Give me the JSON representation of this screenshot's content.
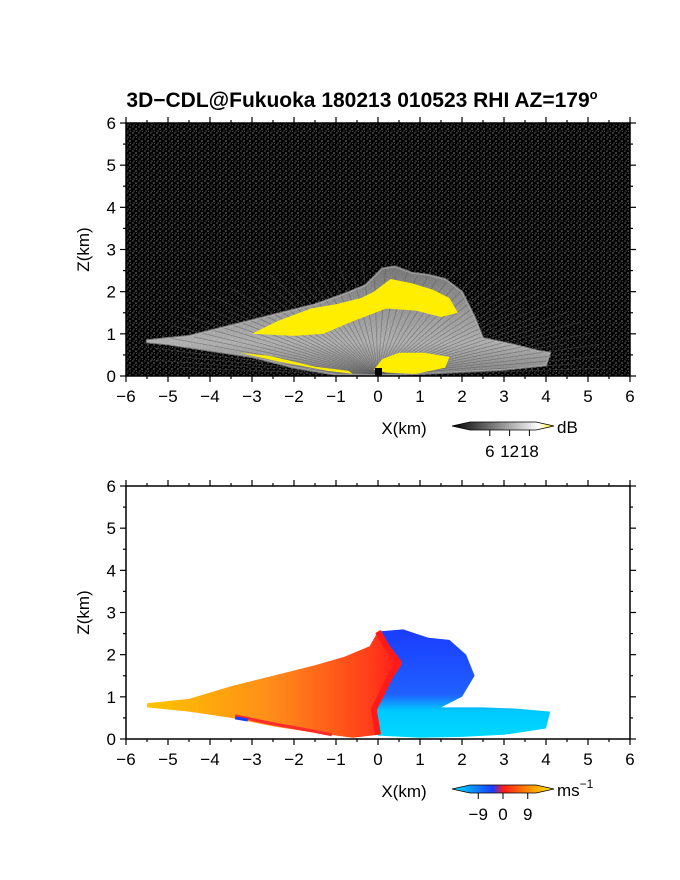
{
  "title": "3D−CDL@Fukuoka 180213 010523 RHI AZ=179",
  "title_degree": "o",
  "chart_data": [
    {
      "type": "heatmap",
      "quantity": "reflectivity",
      "xlabel": "X(km)",
      "ylabel": "Z(km)",
      "xlim": [
        -6,
        6
      ],
      "ylim": [
        0,
        6
      ],
      "x_ticks": [
        -6,
        -5,
        -4,
        -3,
        -2,
        -1,
        0,
        1,
        2,
        3,
        4,
        5,
        6
      ],
      "y_ticks": [
        0,
        1,
        2,
        3,
        4,
        5,
        6
      ],
      "colorbar": {
        "unit": "dB",
        "ticks": [
          6,
          12,
          18
        ],
        "range": [
          0,
          20
        ],
        "colors": [
          "#000000",
          "#ffffff",
          "#ffee00"
        ]
      },
      "echo_envelope": [
        [
          -5.5,
          0.85
        ],
        [
          -4.5,
          0.95
        ],
        [
          -3.5,
          1.2
        ],
        [
          -2.5,
          1.45
        ],
        [
          -1.5,
          1.7
        ],
        [
          -0.8,
          1.95
        ],
        [
          -0.3,
          2.15
        ],
        [
          0.1,
          2.55
        ],
        [
          0.4,
          2.6
        ],
        [
          0.8,
          2.45
        ],
        [
          1.2,
          2.4
        ],
        [
          1.6,
          2.3
        ],
        [
          2.0,
          2.0
        ],
        [
          2.3,
          1.4
        ],
        [
          2.5,
          0.9
        ],
        [
          3.2,
          0.75
        ],
        [
          3.8,
          0.6
        ],
        [
          4.1,
          0.55
        ],
        [
          4.0,
          0.25
        ],
        [
          3.0,
          0.15
        ],
        [
          2.0,
          0.1
        ],
        [
          1.0,
          0.05
        ],
        [
          0.0,
          0.02
        ],
        [
          -1.0,
          0.03
        ],
        [
          -2.0,
          0.2
        ],
        [
          -3.0,
          0.45
        ],
        [
          -4.0,
          0.6
        ],
        [
          -5.0,
          0.75
        ],
        [
          -5.5,
          0.8
        ]
      ],
      "strong_echo_regions": [
        [
          [
            -3.0,
            1.0
          ],
          [
            -2.4,
            1.3
          ],
          [
            -1.6,
            1.6
          ],
          [
            -1.0,
            1.7
          ],
          [
            -0.4,
            1.85
          ],
          [
            -0.1,
            2.0
          ],
          [
            0.3,
            2.3
          ],
          [
            0.8,
            2.2
          ],
          [
            1.3,
            2.05
          ],
          [
            1.7,
            1.85
          ],
          [
            1.9,
            1.5
          ],
          [
            1.5,
            1.4
          ],
          [
            0.9,
            1.55
          ],
          [
            0.2,
            1.6
          ],
          [
            -0.6,
            1.3
          ],
          [
            -1.3,
            1.0
          ],
          [
            -2.0,
            0.95
          ]
        ],
        [
          [
            -0.1,
            0.15
          ],
          [
            0.1,
            0.4
          ],
          [
            0.5,
            0.55
          ],
          [
            1.1,
            0.55
          ],
          [
            1.7,
            0.45
          ],
          [
            1.6,
            0.2
          ],
          [
            0.9,
            0.05
          ],
          [
            0.2,
            0.08
          ]
        ],
        [
          [
            -3.3,
            0.55
          ],
          [
            -2.4,
            0.35
          ],
          [
            -1.2,
            0.12
          ],
          [
            -0.6,
            0.05
          ],
          [
            -0.7,
            0.12
          ],
          [
            -1.5,
            0.22
          ],
          [
            -2.6,
            0.48
          ]
        ]
      ]
    },
    {
      "type": "heatmap",
      "quantity": "doppler_velocity",
      "xlabel": "X(km)",
      "ylabel": "Z(km)",
      "xlim": [
        -6,
        6
      ],
      "ylim": [
        0,
        6
      ],
      "x_ticks": [
        -6,
        -5,
        -4,
        -3,
        -2,
        -1,
        0,
        1,
        2,
        3,
        4,
        5,
        6
      ],
      "y_ticks": [
        0,
        1,
        2,
        3,
        4,
        5,
        6
      ],
      "colorbar": {
        "unit": "ms",
        "unit_exponent": "−1",
        "ticks": [
          "−9",
          "0",
          "9"
        ],
        "range": [
          -12,
          12
        ],
        "colors": [
          "#00e5ff",
          "#1a3cff",
          "#ff1a1a",
          "#ff8c00",
          "#ffee00"
        ]
      },
      "positive_region": [
        [
          -5.5,
          0.85
        ],
        [
          -4.5,
          0.95
        ],
        [
          -3.5,
          1.25
        ],
        [
          -2.5,
          1.5
        ],
        [
          -1.5,
          1.75
        ],
        [
          -0.8,
          1.95
        ],
        [
          -0.2,
          2.2
        ],
        [
          0.0,
          2.55
        ],
        [
          0.2,
          2.2
        ],
        [
          0.5,
          1.8
        ],
        [
          0.3,
          1.5
        ],
        [
          0.1,
          1.1
        ],
        [
          -0.1,
          0.7
        ],
        [
          0.0,
          0.1
        ],
        [
          -0.6,
          0.03
        ],
        [
          -1.5,
          0.15
        ],
        [
          -2.5,
          0.3
        ],
        [
          -3.5,
          0.5
        ],
        [
          -4.5,
          0.65
        ],
        [
          -5.5,
          0.75
        ]
      ],
      "negative_region": [
        [
          0.0,
          2.55
        ],
        [
          0.6,
          2.6
        ],
        [
          1.2,
          2.4
        ],
        [
          1.7,
          2.35
        ],
        [
          2.1,
          2.0
        ],
        [
          2.3,
          1.5
        ],
        [
          2.0,
          1.0
        ],
        [
          1.5,
          0.75
        ],
        [
          2.5,
          0.75
        ],
        [
          3.3,
          0.72
        ],
        [
          4.1,
          0.65
        ],
        [
          4.0,
          0.25
        ],
        [
          3.0,
          0.1
        ],
        [
          2.0,
          0.05
        ],
        [
          1.0,
          0.03
        ],
        [
          0.0,
          0.08
        ],
        [
          -0.1,
          0.7
        ],
        [
          0.1,
          1.1
        ],
        [
          0.3,
          1.5
        ],
        [
          0.5,
          1.8
        ],
        [
          0.2,
          2.2
        ]
      ]
    }
  ]
}
